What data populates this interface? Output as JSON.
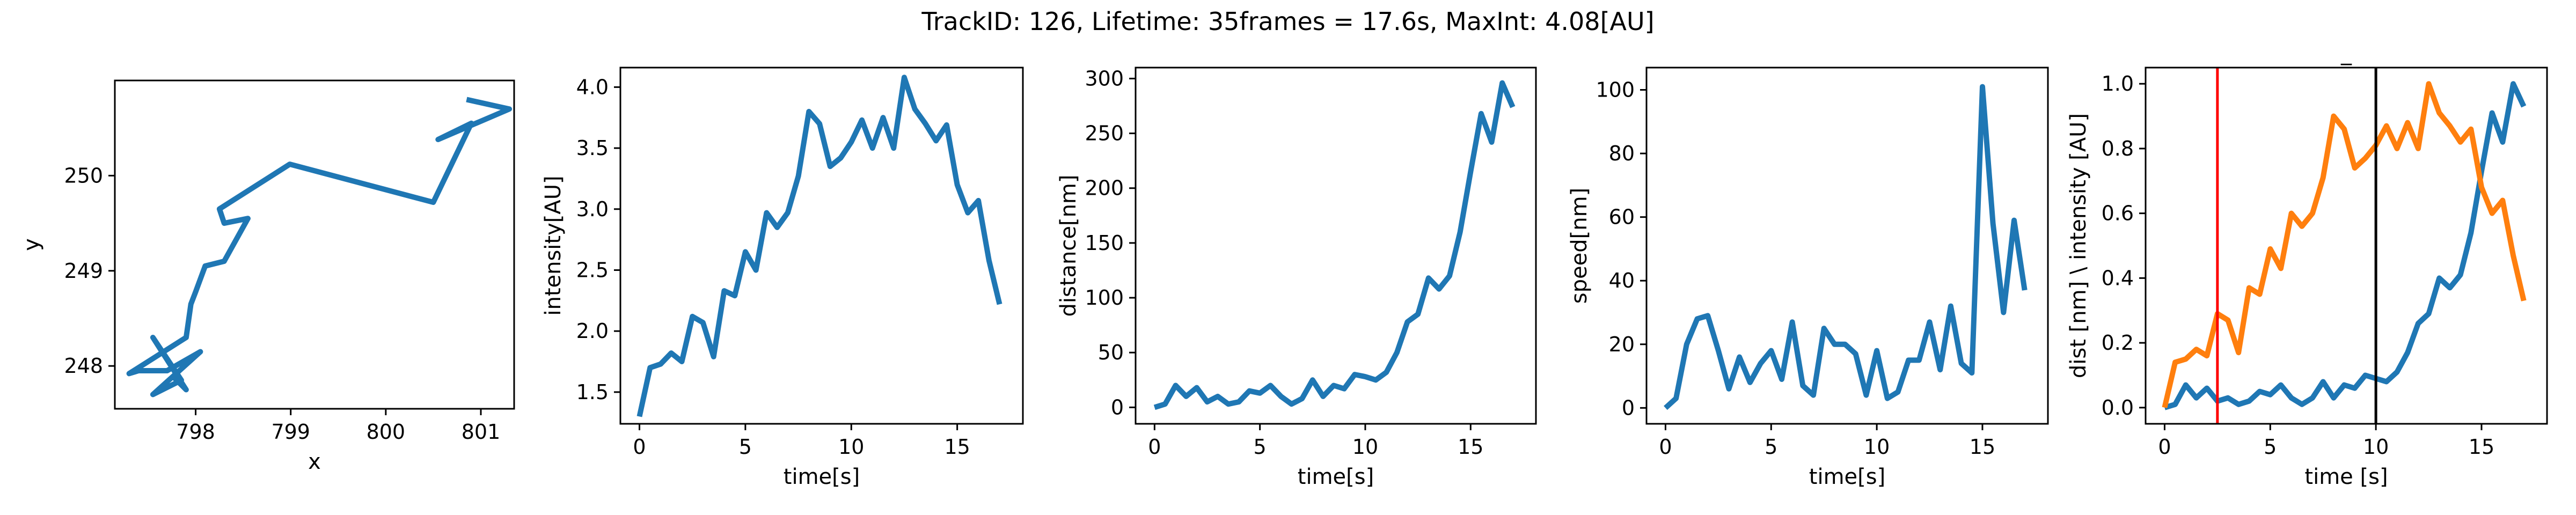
{
  "figure": {
    "title": "TrackID: 126, Lifetime: 35frames = 17.6s, MaxInt: 4.08[AU]",
    "series_color": "#1f77b4",
    "second_series_color": "#ff7f0e",
    "red_line_color": "#ff0000",
    "black_line_color": "#000000"
  },
  "chart_data": [
    {
      "type": "line",
      "title": "",
      "xlabel": "x",
      "ylabel": "y",
      "xlim": [
        797.15,
        801.35
      ],
      "ylim": [
        247.55,
        251.0
      ],
      "xticks": [
        798,
        799,
        800,
        801
      ],
      "yticks": [
        248,
        249,
        250
      ],
      "x": [
        797.75,
        797.9,
        797.55,
        797.85,
        797.55,
        798.05,
        797.7,
        797.4,
        797.3,
        797.9,
        797.95,
        798.0,
        798.1,
        798.3,
        798.55,
        798.3,
        798.25,
        798.99,
        800.5,
        800.9,
        800.55,
        801.3,
        800.85
      ],
      "y": [
        247.9,
        247.75,
        248.3,
        247.85,
        247.7,
        248.15,
        247.95,
        247.95,
        247.92,
        248.3,
        248.65,
        248.78,
        249.05,
        249.1,
        249.55,
        249.5,
        249.65,
        250.12,
        249.72,
        250.55,
        250.38,
        250.7,
        250.8
      ],
      "grid": false
    },
    {
      "type": "line",
      "title": "",
      "xlabel": "time[s]",
      "ylabel": "intensity[AU]",
      "xlim": [
        -0.9,
        18.1
      ],
      "ylim": [
        1.24,
        4.16
      ],
      "xticks": [
        0,
        5,
        10,
        15
      ],
      "yticks": [
        "1.5",
        "2.0",
        "2.5",
        "3.0",
        "3.5",
        "4.0"
      ],
      "x": [
        0,
        0.5,
        1,
        1.5,
        2,
        2.5,
        3,
        3.5,
        4,
        4.5,
        5,
        5.5,
        6,
        6.5,
        7,
        7.5,
        8,
        8.5,
        9,
        9.5,
        10,
        10.5,
        11,
        11.5,
        12,
        12.5,
        13,
        13.5,
        14,
        14.5,
        15,
        15.5,
        16,
        16.5,
        17
      ],
      "y": [
        1.3,
        1.7,
        1.73,
        1.82,
        1.75,
        2.12,
        2.07,
        1.79,
        2.33,
        2.29,
        2.65,
        2.5,
        2.97,
        2.85,
        2.97,
        3.27,
        3.8,
        3.7,
        3.35,
        3.42,
        3.55,
        3.73,
        3.5,
        3.75,
        3.5,
        4.08,
        3.82,
        3.7,
        3.56,
        3.69,
        3.2,
        2.97,
        3.07,
        2.58,
        2.22
      ],
      "grid": false
    },
    {
      "type": "line",
      "title": "",
      "xlabel": "time[s]",
      "ylabel": "distance[nm]",
      "xlim": [
        -0.9,
        18.1
      ],
      "ylim": [
        -15,
        310
      ],
      "xticks": [
        0,
        5,
        10,
        15
      ],
      "yticks": [
        0,
        50,
        100,
        150,
        200,
        250,
        300
      ],
      "x": [
        0,
        0.5,
        1,
        1.5,
        2,
        2.5,
        3,
        3.5,
        4,
        4.5,
        5,
        5.5,
        6,
        6.5,
        7,
        7.5,
        8,
        8.5,
        9,
        9.5,
        10,
        10.5,
        11,
        11.5,
        12,
        12.5,
        13,
        13.5,
        14,
        14.5,
        15,
        15.5,
        16,
        16.5,
        17
      ],
      "y": [
        0,
        3,
        20,
        10,
        18,
        5,
        10,
        3,
        5,
        15,
        13,
        20,
        10,
        3,
        8,
        25,
        10,
        20,
        17,
        30,
        28,
        25,
        32,
        50,
        78,
        85,
        118,
        108,
        120,
        160,
        215,
        268,
        242,
        296,
        274
      ],
      "grid": false
    },
    {
      "type": "line",
      "title": "",
      "xlabel": "time[s]",
      "ylabel": "speed[nm]",
      "xlim": [
        -0.9,
        18.1
      ],
      "ylim": [
        -5,
        107
      ],
      "xticks": [
        0,
        5,
        10,
        15
      ],
      "yticks": [
        0,
        20,
        40,
        60,
        80,
        100
      ],
      "x": [
        0,
        0.5,
        1,
        1.5,
        2,
        2.5,
        3,
        3.5,
        4,
        4.5,
        5,
        5.5,
        6,
        6.5,
        7,
        7.5,
        8,
        8.5,
        9,
        9.5,
        10,
        10.5,
        11,
        11.5,
        12,
        12.5,
        13,
        13.5,
        14,
        14.5,
        15,
        15.5,
        16,
        16.5,
        17
      ],
      "y": [
        0,
        3,
        20,
        28,
        29,
        18,
        6,
        16,
        8,
        14,
        18,
        9,
        27,
        7,
        4,
        25,
        20,
        20,
        17,
        4,
        18,
        3,
        5,
        15,
        15,
        27,
        12,
        32,
        14,
        11,
        101,
        58,
        30,
        59,
        37
      ],
      "grid": false
    },
    {
      "type": "line",
      "title": "_",
      "xlabel": "time [s]",
      "ylabel": "dist [nm] \\ intensity [AU]",
      "xlim": [
        -0.9,
        18.1
      ],
      "ylim": [
        -0.05,
        1.05
      ],
      "xticks": [
        0,
        5,
        10,
        15
      ],
      "yticks": [
        "0.0",
        "0.2",
        "0.4",
        "0.6",
        "0.8",
        "1.0"
      ],
      "x": [
        0,
        0.5,
        1,
        1.5,
        2,
        2.5,
        3,
        3.5,
        4,
        4.5,
        5,
        5.5,
        6,
        6.5,
        7,
        7.5,
        8,
        8.5,
        9,
        9.5,
        10,
        10.5,
        11,
        11.5,
        12,
        12.5,
        13,
        13.5,
        14,
        14.5,
        15,
        15.5,
        16,
        16.5,
        17
      ],
      "series": [
        {
          "values": [
            0.0,
            0.01,
            0.07,
            0.03,
            0.06,
            0.02,
            0.03,
            0.01,
            0.02,
            0.05,
            0.04,
            0.07,
            0.03,
            0.01,
            0.03,
            0.08,
            0.03,
            0.07,
            0.06,
            0.1,
            0.09,
            0.08,
            0.11,
            0.17,
            0.26,
            0.29,
            0.4,
            0.37,
            0.41,
            0.54,
            0.73,
            0.91,
            0.82,
            1.0,
            0.93
          ]
        },
        {
          "values": [
            0.0,
            0.14,
            0.15,
            0.18,
            0.16,
            0.29,
            0.27,
            0.17,
            0.37,
            0.35,
            0.49,
            0.43,
            0.6,
            0.56,
            0.6,
            0.71,
            0.9,
            0.86,
            0.74,
            0.77,
            0.81,
            0.87,
            0.8,
            0.88,
            0.8,
            1.0,
            0.91,
            0.87,
            0.82,
            0.86,
            0.68,
            0.6,
            0.64,
            0.47,
            0.33
          ]
        }
      ],
      "vlines": [
        {
          "x": 2.5,
          "color": "red"
        },
        {
          "x": 10.0,
          "color": "black"
        }
      ],
      "grid": false
    }
  ]
}
